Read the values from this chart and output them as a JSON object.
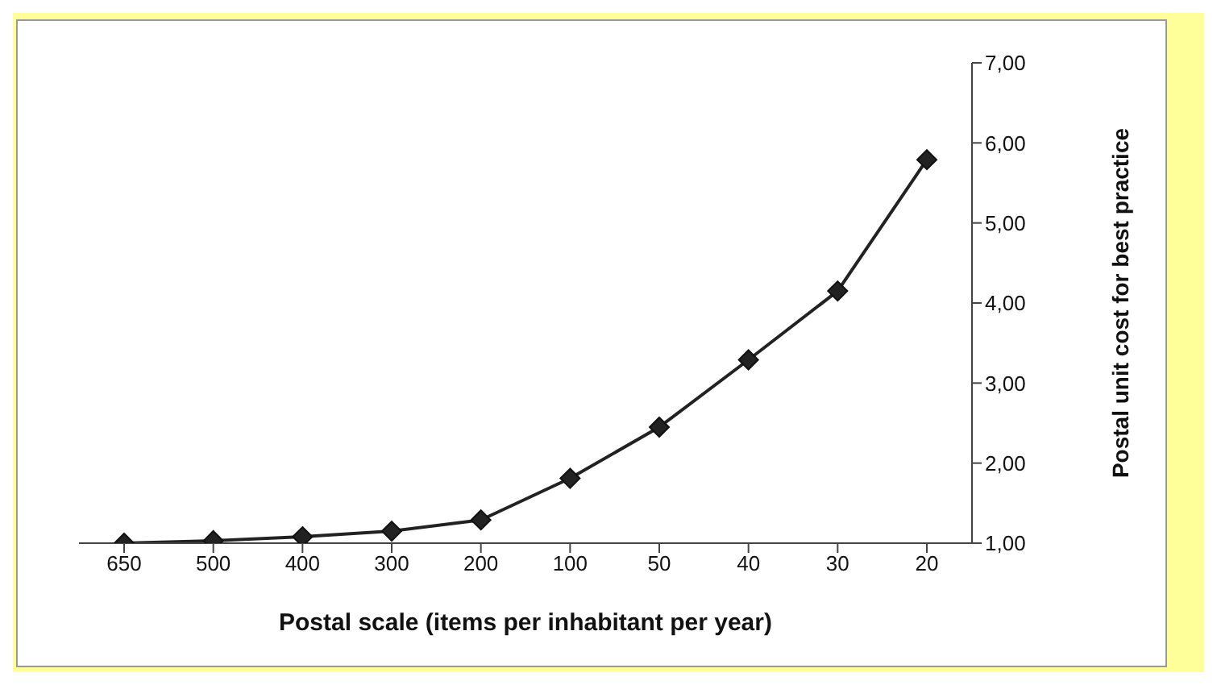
{
  "chart_data": {
    "type": "line",
    "xlabel": "Postal scale (items per inhabitant per year)",
    "ylabel": "Postal unit cost for best practice",
    "categories": [
      "650",
      "500",
      "400",
      "300",
      "200",
      "100",
      "50",
      "40",
      "30",
      "20"
    ],
    "series": [
      {
        "color": "#222222",
        "values": [
          1.0,
          1.03,
          1.08,
          1.15,
          1.29,
          1.81,
          2.45,
          3.29,
          4.15,
          5.79
        ]
      }
    ],
    "ylim": [
      1,
      7
    ],
    "yticks": [
      {
        "value": 1,
        "label": "1,00"
      },
      {
        "value": 2,
        "label": "2,00"
      },
      {
        "value": 3,
        "label": "3,00"
      },
      {
        "value": 4,
        "label": "4,00"
      },
      {
        "value": 5,
        "label": "5,00"
      },
      {
        "value": 6,
        "label": "6,00"
      },
      {
        "value": 7,
        "label": "7,00"
      }
    ],
    "grid": false,
    "marker": "diamond",
    "line_style": "solid"
  }
}
